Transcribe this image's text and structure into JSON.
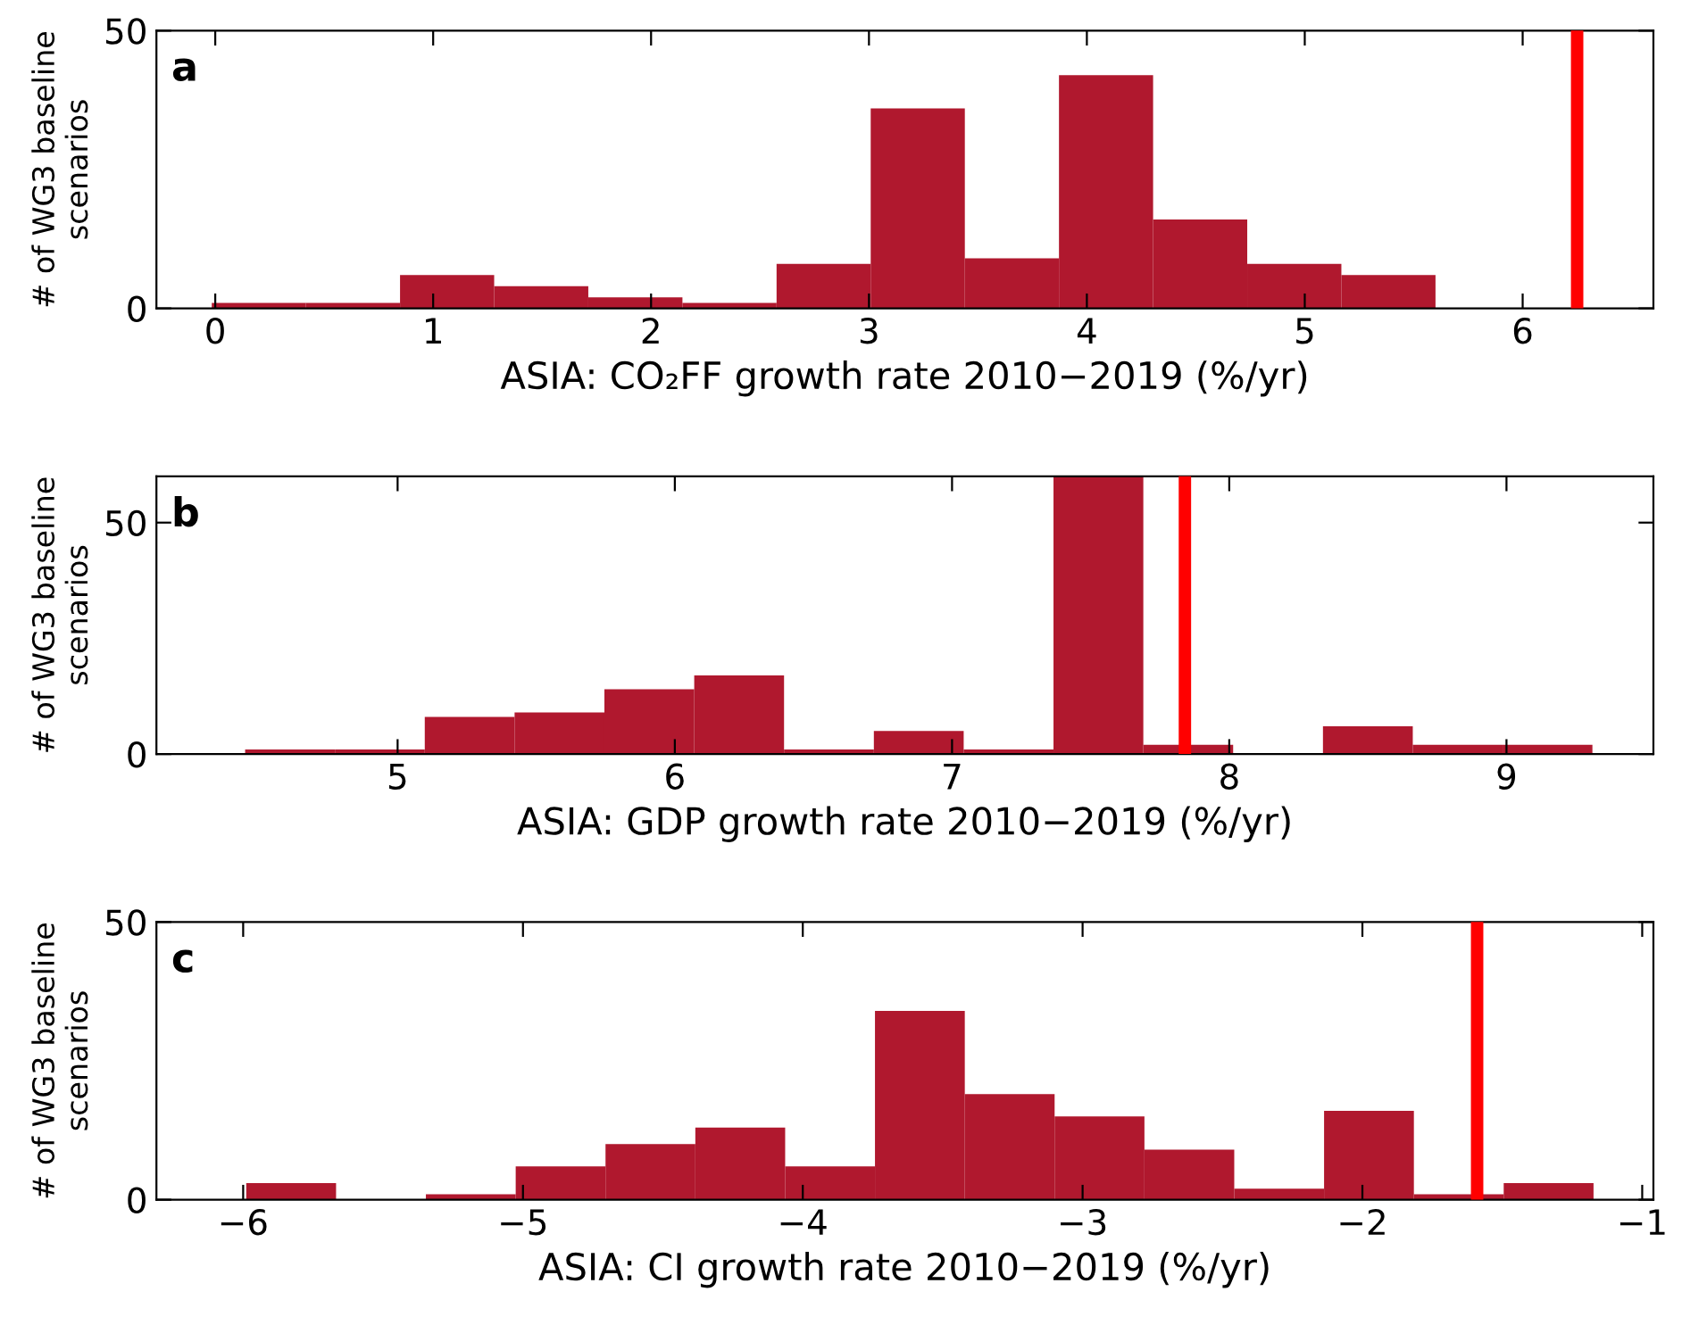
{
  "chart_data": [
    {
      "type": "histogram",
      "annotations": [
        "a"
      ],
      "xlabel": "ASIA: CO₂FF growth rate 2010−2019 (%/yr)",
      "ylabel": "# of WG3 baseline\nscenarios",
      "color": "#b0182e",
      "bins": [
        -0.016,
        0.416,
        0.848,
        1.28,
        1.712,
        2.144,
        2.576,
        3.008,
        3.44,
        3.872,
        4.304,
        4.736,
        5.168,
        5.6
      ],
      "values": [
        1,
        1,
        6,
        4,
        2,
        1,
        8,
        36,
        9,
        42,
        16,
        8,
        6
      ],
      "xlim": [
        -0.27,
        6.6
      ],
      "xticks": [
        0,
        1,
        2,
        3,
        4,
        5,
        6
      ],
      "ylim": [
        0,
        50
      ],
      "yticks": [
        0,
        50
      ],
      "grid": false,
      "ref_lines": [
        {
          "axis": "x",
          "value": 6.25,
          "color": "#ff0000"
        }
      ]
    },
    {
      "type": "histogram",
      "annotations": [
        "b"
      ],
      "xlabel": "ASIA: GDP growth rate 2010−2019 (%/yr)",
      "ylabel": "# of WG3 baseline\nscenarios",
      "color": "#b0182e",
      "bins": [
        4.45,
        4.774,
        5.098,
        5.422,
        5.746,
        6.07,
        6.394,
        6.718,
        7.042,
        7.366,
        7.69,
        8.014,
        8.338,
        8.662,
        8.986,
        9.31
      ],
      "values": [
        1,
        1,
        8,
        9,
        14,
        17,
        1,
        5,
        1,
        60,
        2,
        0,
        6,
        2,
        2
      ],
      "xlim": [
        4.13,
        9.53
      ],
      "xticks": [
        5,
        6,
        7,
        8,
        9
      ],
      "ylim": [
        0,
        60
      ],
      "yticks": [
        0,
        50
      ],
      "grid": false,
      "ref_lines": [
        {
          "axis": "x",
          "value": 7.84,
          "color": "#ff0000"
        }
      ]
    },
    {
      "type": "histogram",
      "annotations": [
        "c"
      ],
      "xlabel": "ASIA: CI growth rate 2010−2019 (%/yr)",
      "ylabel": "# of WG3 baseline\nscenarios",
      "color": "#b0182e",
      "bins": [
        -5.989,
        -5.668,
        -5.347,
        -5.026,
        -4.705,
        -4.384,
        -4.063,
        -3.742,
        -3.421,
        -3.1,
        -2.779,
        -2.458,
        -2.137,
        -1.816,
        -1.495,
        -1.174
      ],
      "values": [
        3,
        0,
        1,
        6,
        10,
        13,
        6,
        34,
        19,
        15,
        9,
        2,
        16,
        1,
        3
      ],
      "xlim": [
        -6.31,
        -0.96
      ],
      "xticks": [
        {
          "value": -6,
          "label": "−6"
        },
        {
          "value": -5,
          "label": "−5"
        },
        {
          "value": -4,
          "label": "−4"
        },
        {
          "value": -3,
          "label": "−3"
        },
        {
          "value": -2,
          "label": "−2"
        },
        {
          "value": -1,
          "label": "−1"
        }
      ],
      "ylim": [
        0,
        50
      ],
      "yticks": [
        0,
        50
      ],
      "grid": false,
      "ref_lines": [
        {
          "axis": "x",
          "value": -1.59,
          "color": "#ff0000"
        }
      ]
    }
  ]
}
